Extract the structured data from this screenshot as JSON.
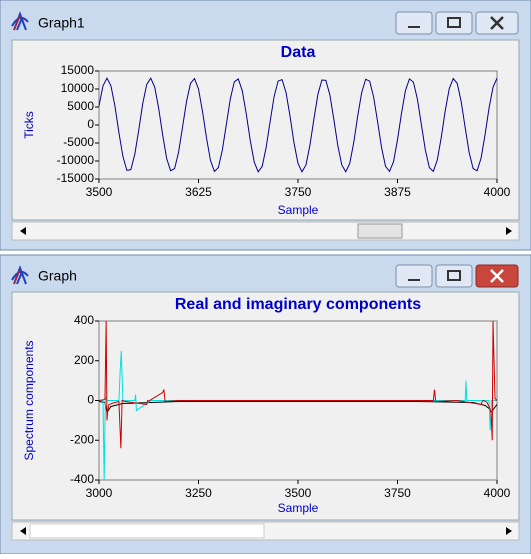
{
  "windows": [
    {
      "title": "Graph1"
    },
    {
      "title": "Graph"
    }
  ],
  "chart_data": [
    {
      "type": "line",
      "title": "Data",
      "x_label": "Sample",
      "y_label": "Ticks",
      "x": [
        3500,
        3505,
        3510,
        3515,
        3520,
        3525,
        3530,
        3535,
        3540,
        3545,
        3550,
        3555,
        3560,
        3565,
        3570,
        3575,
        3580,
        3585,
        3590,
        3595,
        3600,
        3605,
        3610,
        3615,
        3620,
        3625,
        3630,
        3635,
        3640,
        3645,
        3650,
        3655,
        3660,
        3665,
        3670,
        3675,
        3680,
        3685,
        3690,
        3695,
        3700,
        3705,
        3710,
        3715,
        3720,
        3725,
        3730,
        3735,
        3740,
        3745,
        3750,
        3755,
        3760,
        3765,
        3770,
        3775,
        3780,
        3785,
        3790,
        3795,
        3800,
        3805,
        3810,
        3815,
        3820,
        3825,
        3830,
        3835,
        3840,
        3845,
        3850,
        3855,
        3860,
        3865,
        3870,
        3875,
        3880,
        3885,
        3890,
        3895,
        3900,
        3905,
        3910,
        3915,
        3920,
        3925,
        3930,
        3935,
        3940,
        3945,
        3950,
        3955,
        3960,
        3965,
        3970,
        3975,
        3980,
        3985,
        3990,
        3995,
        4000
      ],
      "series": [
        {
          "color": "#00008b",
          "values": [
            5300,
            10900,
            13000,
            10900,
            5300,
            -2100,
            -8700,
            -12600,
            -12400,
            -8100,
            -1300,
            6000,
            11300,
            13000,
            10500,
            4600,
            -2800,
            -9300,
            -12700,
            -12100,
            -7500,
            -500,
            6600,
            11600,
            12900,
            10000,
            3800,
            -3500,
            -9800,
            -12900,
            -11800,
            -6900,
            200,
            7300,
            12000,
            12800,
            9500,
            3100,
            -4300,
            -10300,
            -13000,
            -11500,
            -6200,
            1000,
            7900,
            12200,
            12600,
            9000,
            2400,
            -5000,
            -10700,
            -13000,
            -11100,
            -5600,
            1700,
            8500,
            12500,
            12400,
            8400,
            1600,
            -5700,
            -11100,
            -13000,
            -10700,
            -4900,
            2500,
            9000,
            12700,
            12200,
            7800,
            900,
            -6300,
            -11500,
            -12900,
            -10200,
            -4100,
            3200,
            9600,
            12800,
            11900,
            7200,
            100,
            -7000,
            -11800,
            -12900,
            -9700,
            -3400,
            4000,
            10100,
            12900,
            11600,
            6500,
            -700,
            -7600,
            -12100,
            -12700,
            -9200,
            -2700,
            4700,
            10500,
            13000
          ]
        }
      ],
      "xlim": [
        3500,
        4000
      ],
      "xticks": [
        3500,
        3625,
        3750,
        3875,
        4000
      ],
      "ylim": [
        -15000,
        15000
      ],
      "yticks": [
        15000,
        10000,
        5000,
        0,
        -5000,
        -10000,
        -15000
      ]
    },
    {
      "type": "line",
      "title": "Real and imaginary components",
      "x_label": "Sample",
      "y_label": "Spectrum components",
      "series": [
        {
          "color": "#000000",
          "x": [
            3000,
            3015,
            3020,
            3030,
            3060,
            3200,
            3800,
            3940,
            3970,
            3980,
            3985,
            4000
          ],
          "values": [
            -5,
            -10,
            -60,
            -30,
            -15,
            -5,
            -5,
            -10,
            -25,
            -40,
            -60,
            -20
          ]
        },
        {
          "color": "#00e0e0",
          "x": [
            3000,
            3010,
            3013,
            3016,
            3020,
            3050,
            3053,
            3056,
            3060,
            3090,
            3092,
            3094,
            3130,
            3920,
            3922,
            3924,
            3960,
            3980,
            3983,
            3986,
            4000
          ],
          "values": [
            0,
            0,
            -400,
            20,
            0,
            0,
            140,
            250,
            0,
            0,
            30,
            -50,
            0,
            0,
            100,
            0,
            0,
            0,
            -150,
            0,
            0
          ]
        },
        {
          "color": "#cc0000",
          "x": [
            3000,
            3015,
            3018,
            3020,
            3022,
            3025,
            3040,
            3050,
            3055,
            3058,
            3065,
            3120,
            3122,
            3125,
            3160,
            3163,
            3166,
            3200,
            3840,
            3843,
            3846,
            3900,
            3960,
            3963,
            3966,
            3975,
            3982,
            3985,
            3988,
            3990,
            3995,
            4000
          ],
          "values": [
            0,
            5,
            400,
            -100,
            -50,
            -20,
            -10,
            -5,
            -240,
            0,
            -5,
            -20,
            0,
            -3,
            40,
            55,
            -5,
            0,
            0,
            55,
            -5,
            0,
            -20,
            -5,
            0,
            -10,
            -40,
            -60,
            -200,
            400,
            10,
            0
          ]
        }
      ],
      "xlim": [
        3000,
        4000
      ],
      "xticks": [
        3000,
        3250,
        3500,
        3750,
        4000
      ],
      "ylim": [
        -400,
        400
      ],
      "yticks": [
        400,
        200,
        0,
        -200,
        -400
      ]
    }
  ]
}
